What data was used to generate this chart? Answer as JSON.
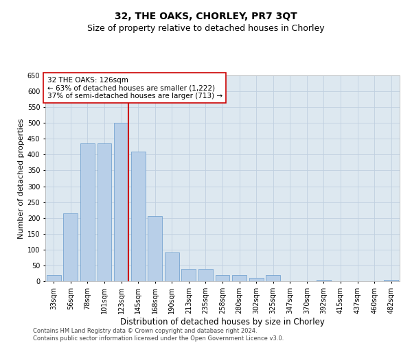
{
  "title": "32, THE OAKS, CHORLEY, PR7 3QT",
  "subtitle": "Size of property relative to detached houses in Chorley",
  "xlabel": "Distribution of detached houses by size in Chorley",
  "ylabel": "Number of detached properties",
  "categories": [
    "33sqm",
    "56sqm",
    "78sqm",
    "101sqm",
    "123sqm",
    "145sqm",
    "168sqm",
    "190sqm",
    "213sqm",
    "235sqm",
    "258sqm",
    "280sqm",
    "302sqm",
    "325sqm",
    "347sqm",
    "370sqm",
    "392sqm",
    "415sqm",
    "437sqm",
    "460sqm",
    "482sqm"
  ],
  "values": [
    20,
    215,
    435,
    435,
    500,
    410,
    205,
    90,
    40,
    40,
    20,
    20,
    10,
    20,
    0,
    0,
    5,
    0,
    0,
    0,
    5
  ],
  "bar_color": "#b8cfe8",
  "bar_edge_color": "#6699cc",
  "vline_color": "#cc0000",
  "annotation_text": "32 THE OAKS: 126sqm\n← 63% of detached houses are smaller (1,222)\n37% of semi-detached houses are larger (713) →",
  "annotation_box_color": "white",
  "annotation_box_edge": "#cc0000",
  "ylim": [
    0,
    650
  ],
  "yticks": [
    0,
    50,
    100,
    150,
    200,
    250,
    300,
    350,
    400,
    450,
    500,
    550,
    600,
    650
  ],
  "grid_color": "#c0d0e0",
  "background_color": "#dde8f0",
  "footer": "Contains HM Land Registry data © Crown copyright and database right 2024.\nContains public sector information licensed under the Open Government Licence v3.0.",
  "title_fontsize": 10,
  "subtitle_fontsize": 9,
  "xlabel_fontsize": 8.5,
  "ylabel_fontsize": 8,
  "tick_fontsize": 7,
  "annotation_fontsize": 7.5,
  "footer_fontsize": 6
}
